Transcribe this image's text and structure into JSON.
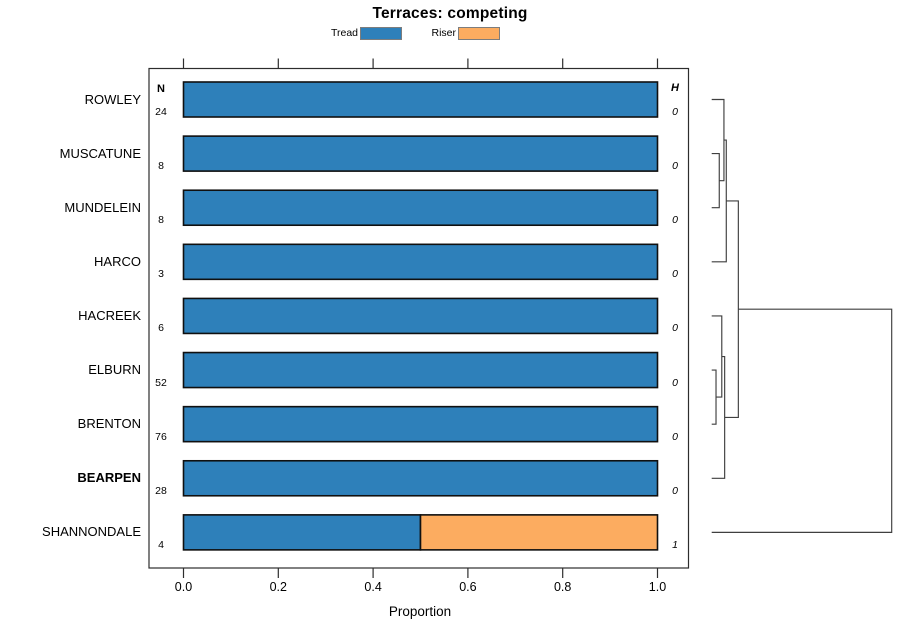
{
  "title": "Terraces: competing",
  "legend": {
    "items": [
      {
        "label": "Tread",
        "color": "#2E80BA"
      },
      {
        "label": "Riser",
        "color": "#FCAC60"
      }
    ]
  },
  "columns": {
    "n_header": "N",
    "h_header": "H"
  },
  "x_axis": {
    "label": "Proportion",
    "tick_labels": [
      "0.0",
      "0.2",
      "0.4",
      "0.6",
      "0.8",
      "1.0"
    ],
    "tick_values": [
      0,
      0.2,
      0.4,
      0.6,
      0.8,
      1
    ]
  },
  "chart_data": {
    "type": "bar",
    "orientation": "horizontal_stacked",
    "title": "Terraces: competing",
    "xlabel": "Proportion",
    "xlim": [
      0,
      1
    ],
    "grid": false,
    "legend_position": "top",
    "categories": [
      "ROWLEY",
      "MUSCATUNE",
      "MUNDELEIN",
      "HARCO",
      "HACREEK",
      "ELBURN",
      "BRENTON",
      "BEARPEN",
      "SHANNONDALE"
    ],
    "emphasized_category": "BEARPEN",
    "n_values": [
      24,
      8,
      8,
      3,
      6,
      52,
      76,
      28,
      4
    ],
    "h_values": [
      0,
      0,
      0,
      0,
      0,
      0,
      0,
      0,
      1
    ],
    "series": [
      {
        "name": "Tread",
        "color": "#2E80BA",
        "values": [
          1,
          1,
          1,
          1,
          1,
          1,
          1,
          1,
          0.5
        ]
      },
      {
        "name": "Riser",
        "color": "#FCAC60",
        "values": [
          0,
          0,
          0,
          0,
          0,
          0,
          0,
          0,
          0.5
        ]
      }
    ],
    "dendrogram": {
      "side": "right",
      "leaves": [
        "ROWLEY",
        "MUSCATUNE",
        "MUNDELEIN",
        "HARCO",
        "HACREEK",
        "ELBURN",
        "BRENTON",
        "BEARPEN",
        "SHANNONDALE"
      ],
      "merges": [
        {
          "a": "MUSCATUNE",
          "b": "MUNDELEIN",
          "height": 0.042
        },
        {
          "a": "ROWLEY",
          "b": "M0",
          "height": 0.068
        },
        {
          "a": "M1",
          "b": "HARCO",
          "height": 0.081
        },
        {
          "a": "ELBURN",
          "b": "BRENTON",
          "height": 0.024
        },
        {
          "a": "HACREEK",
          "b": "M3",
          "height": 0.056
        },
        {
          "a": "M4",
          "b": "BEARPEN",
          "height": 0.072
        },
        {
          "a": "M2",
          "b": "M5",
          "height": 0.148
        },
        {
          "a": "M6",
          "b": "SHANNONDALE",
          "height": 1.0
        }
      ]
    }
  }
}
